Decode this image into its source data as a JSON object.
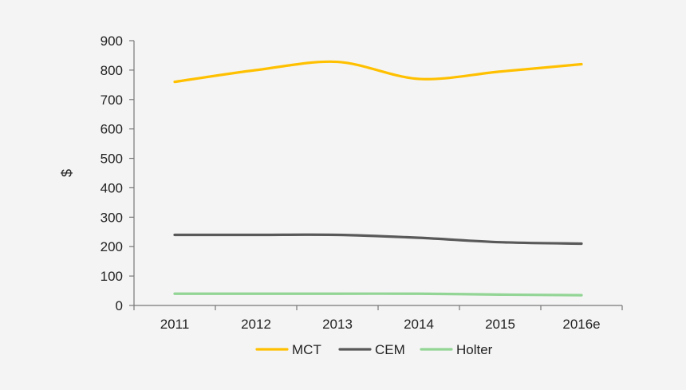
{
  "chart_data": {
    "type": "line",
    "title": "",
    "xlabel": "",
    "ylabel": "$",
    "ylim": [
      0,
      900
    ],
    "yticks": [
      0,
      100,
      200,
      300,
      400,
      500,
      600,
      700,
      800,
      900
    ],
    "categories": [
      "2011",
      "2012",
      "2013",
      "2014",
      "2015",
      "2016e"
    ],
    "grid": false,
    "legend_position": "bottom",
    "series": [
      {
        "name": "MCT",
        "color": "#ffc000",
        "values": [
          760,
          800,
          828,
          770,
          795,
          820
        ]
      },
      {
        "name": "CEM",
        "color": "#595959",
        "values": [
          240,
          240,
          240,
          230,
          215,
          210
        ]
      },
      {
        "name": "Holter",
        "color": "#92d595",
        "values": [
          40,
          40,
          40,
          40,
          37,
          35
        ]
      }
    ]
  }
}
